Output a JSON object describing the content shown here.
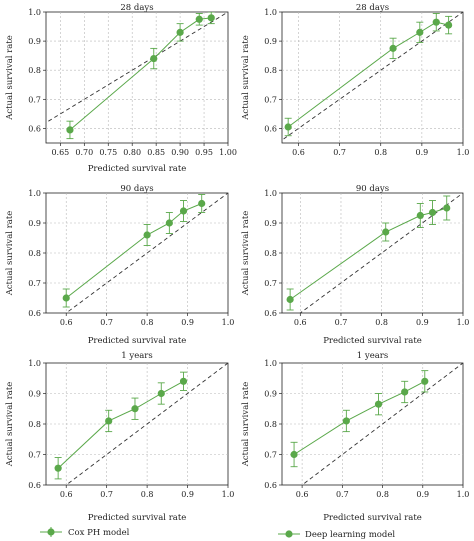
{
  "colors": {
    "series": "#5aa84a",
    "diagonal": "#333333",
    "grid": "#b8b8b8"
  },
  "legend": [
    {
      "label": "Cox PH model"
    },
    {
      "label": "Deep learning model"
    }
  ],
  "chart_data": [
    {
      "type": "line",
      "title": "28 days",
      "xlabel": "Predicted survival rate",
      "ylabel": "Actual survival rate",
      "xlim": [
        0.62,
        1.0
      ],
      "ylim": [
        0.55,
        1.0
      ],
      "xticks": [
        "0.65",
        "0.70",
        "0.75",
        "0.80",
        "0.85",
        "0.90",
        "0.95",
        "1.00"
      ],
      "yticks": [
        "0.6",
        "0.7",
        "0.8",
        "0.9",
        "1.0"
      ],
      "xtick_values": [
        0.65,
        0.7,
        0.75,
        0.8,
        0.85,
        0.9,
        0.95,
        1.0
      ],
      "ytick_values": [
        0.6,
        0.7,
        0.8,
        0.9,
        1.0
      ],
      "grid": true,
      "diagonal": true,
      "series": [
        {
          "x": [
            0.67,
            0.845,
            0.9,
            0.94,
            0.965
          ],
          "y": [
            0.595,
            0.84,
            0.93,
            0.975,
            0.98
          ],
          "yerr": [
            0.03,
            0.035,
            0.03,
            0.02,
            0.02
          ]
        }
      ]
    },
    {
      "type": "line",
      "title": "28 days",
      "xlabel": "",
      "ylabel": "Actual survival rate",
      "xlim": [
        0.56,
        1.0
      ],
      "ylim": [
        0.55,
        1.0
      ],
      "xticks": [
        "0.6",
        "0.7",
        "0.8",
        "0.9",
        "1.0"
      ],
      "yticks": [
        "0.6",
        "0.7",
        "0.8",
        "0.9",
        "1.0"
      ],
      "xtick_values": [
        0.6,
        0.7,
        0.8,
        0.9,
        1.0
      ],
      "ytick_values": [
        0.6,
        0.7,
        0.8,
        0.9,
        1.0
      ],
      "grid": true,
      "diagonal": true,
      "series": [
        {
          "x": [
            0.575,
            0.83,
            0.895,
            0.935,
            0.965
          ],
          "y": [
            0.605,
            0.875,
            0.93,
            0.965,
            0.955
          ],
          "yerr": [
            0.03,
            0.035,
            0.035,
            0.03,
            0.03
          ]
        }
      ]
    },
    {
      "type": "line",
      "title": "90 days",
      "xlabel": "Predicted survival rate",
      "ylabel": "Actual survival rate",
      "xlim": [
        0.55,
        1.0
      ],
      "ylim": [
        0.6,
        1.0
      ],
      "xticks": [
        "0.6",
        "0.7",
        "0.8",
        "0.9",
        "1.0"
      ],
      "yticks": [
        "0.6",
        "0.7",
        "0.8",
        "0.9",
        "1.0"
      ],
      "xtick_values": [
        0.6,
        0.7,
        0.8,
        0.9,
        1.0
      ],
      "ytick_values": [
        0.6,
        0.7,
        0.8,
        0.9,
        1.0
      ],
      "grid": true,
      "diagonal": true,
      "series": [
        {
          "x": [
            0.6,
            0.8,
            0.855,
            0.89,
            0.935
          ],
          "y": [
            0.65,
            0.86,
            0.9,
            0.94,
            0.965
          ],
          "yerr": [
            0.03,
            0.035,
            0.035,
            0.035,
            0.03
          ]
        }
      ]
    },
    {
      "type": "line",
      "title": "90 days",
      "xlabel": "Predicted survival rate",
      "ylabel": "Actual survival rate",
      "xlim": [
        0.555,
        1.0
      ],
      "ylim": [
        0.6,
        1.0
      ],
      "xticks": [
        "0.6",
        "0.7",
        "0.8",
        "0.9",
        "1.0"
      ],
      "yticks": [
        "0.6",
        "0.7",
        "0.8",
        "0.9",
        "1.0"
      ],
      "xtick_values": [
        0.6,
        0.7,
        0.8,
        0.9,
        1.0
      ],
      "ytick_values": [
        0.6,
        0.7,
        0.8,
        0.9,
        1.0
      ],
      "grid": true,
      "diagonal": true,
      "series": [
        {
          "x": [
            0.575,
            0.81,
            0.895,
            0.925,
            0.96
          ],
          "y": [
            0.645,
            0.87,
            0.925,
            0.935,
            0.95
          ],
          "yerr": [
            0.035,
            0.03,
            0.04,
            0.04,
            0.04
          ]
        }
      ]
    },
    {
      "type": "line",
      "title": "1 years",
      "xlabel": "Predicted survival rate",
      "ylabel": "Actual survival rate",
      "xlim": [
        0.55,
        1.0
      ],
      "ylim": [
        0.6,
        1.0
      ],
      "xticks": [
        "0.6",
        "0.7",
        "0.8",
        "0.9",
        "1.0"
      ],
      "yticks": [
        "0.6",
        "0.7",
        "0.8",
        "0.9",
        "1.0"
      ],
      "xtick_values": [
        0.6,
        0.7,
        0.8,
        0.9,
        1.0
      ],
      "ytick_values": [
        0.6,
        0.7,
        0.8,
        0.9,
        1.0
      ],
      "grid": true,
      "diagonal": true,
      "series": [
        {
          "x": [
            0.58,
            0.705,
            0.77,
            0.835,
            0.89
          ],
          "y": [
            0.655,
            0.81,
            0.85,
            0.9,
            0.94
          ],
          "yerr": [
            0.035,
            0.035,
            0.035,
            0.035,
            0.03
          ]
        }
      ]
    },
    {
      "type": "line",
      "title": "1 years",
      "xlabel": "Predicted survival rate",
      "ylabel": "Actual survival rate",
      "xlim": [
        0.55,
        1.0
      ],
      "ylim": [
        0.6,
        1.0
      ],
      "xticks": [
        "0.6",
        "0.7",
        "0.8",
        "0.9",
        "1.0"
      ],
      "yticks": [
        "0.6",
        "0.7",
        "0.8",
        "0.9",
        "1.0"
      ],
      "xtick_values": [
        0.6,
        0.7,
        0.8,
        0.9,
        1.0
      ],
      "ytick_values": [
        0.6,
        0.7,
        0.8,
        0.9,
        1.0
      ],
      "grid": true,
      "diagonal": true,
      "series": [
        {
          "x": [
            0.58,
            0.71,
            0.79,
            0.855,
            0.905
          ],
          "y": [
            0.7,
            0.81,
            0.865,
            0.905,
            0.94
          ],
          "yerr": [
            0.04,
            0.035,
            0.035,
            0.035,
            0.035
          ]
        }
      ]
    }
  ]
}
